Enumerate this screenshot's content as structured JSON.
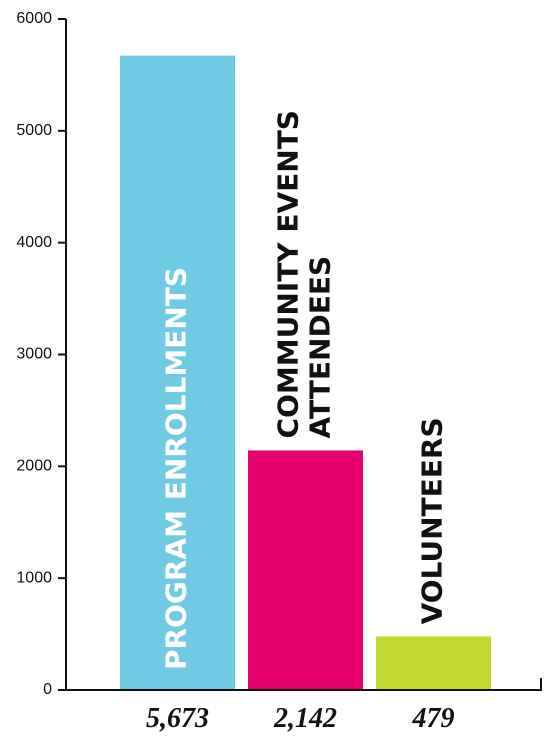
{
  "chart_data": {
    "type": "bar",
    "categories": [
      "PROGRAM ENROLLMENTS",
      "COMMUNITY EVENTS ATTENDEES",
      "VOLUNTEERS"
    ],
    "category_label_lines": [
      [
        "PROGRAM ENROLLMENTS"
      ],
      [
        "COMMUNITY EVENTS",
        "ATTENDEES"
      ],
      [
        "VOLUNTEERS"
      ]
    ],
    "values": [
      5673,
      2142,
      479
    ],
    "value_labels": [
      "5,673",
      "2,142",
      "479"
    ],
    "colors": [
      "#6ecbe3",
      "#e5006e",
      "#c1d82f"
    ],
    "category_label_colors": [
      "#ffffff",
      "#111111",
      "#111111"
    ],
    "category_label_position": [
      "inside",
      "above",
      "above"
    ],
    "ylim": [
      0,
      6000
    ],
    "yticks": [
      0,
      1000,
      2000,
      3000,
      4000,
      5000,
      6000
    ],
    "title": "",
    "xlabel": "",
    "ylabel": "",
    "grid": false,
    "legend": false
  }
}
